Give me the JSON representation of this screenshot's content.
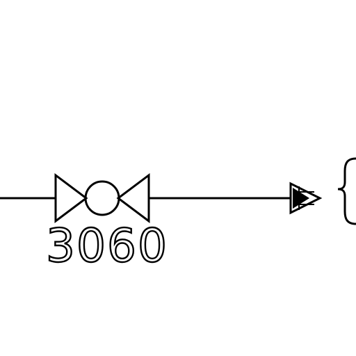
{
  "diagram": {
    "valve": {
      "tag": "3060",
      "symbol": "ball-valve"
    },
    "line_end": {
      "symbol": "flow-arrow-triangle"
    },
    "connector": {
      "symbol": "curly-brace"
    },
    "colors": {
      "line": "#000000",
      "background": "#ffffff"
    }
  }
}
